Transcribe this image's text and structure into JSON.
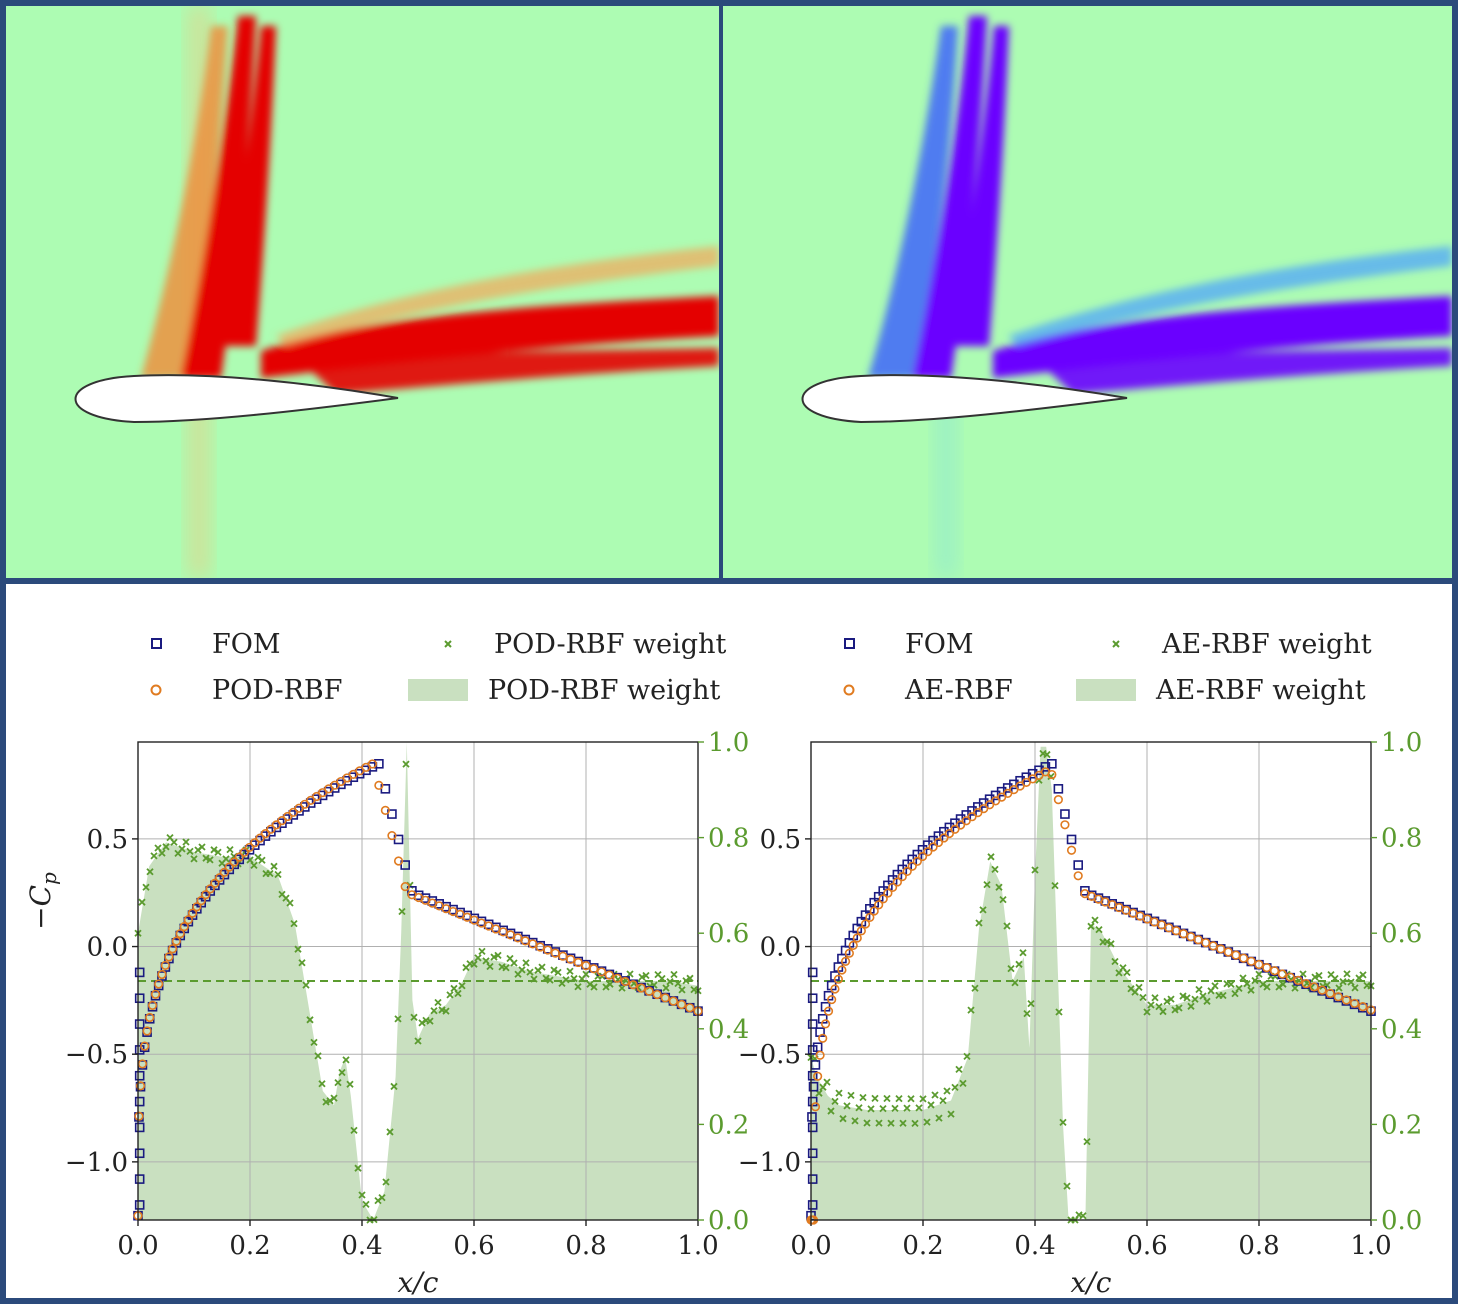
{
  "panels": {
    "top_left": {
      "field": "red"
    },
    "top_right": {
      "field": "blue"
    }
  },
  "colors": {
    "background_field": "#adfcb3",
    "shock_red": "#e40000",
    "shock_blue": "#6a00ff",
    "fom": "#1a1a80",
    "rom": "#e07b20",
    "weight": "#5b9b2f",
    "weight_fill": "#c9e0c0"
  },
  "chart_data": [
    {
      "type": "scatter",
      "xlabel": "x/c",
      "ylabel": "−C",
      "ylabel_sub": "p",
      "xlim": [
        0,
        1.0
      ],
      "ylim": [
        -1.27,
        0.95
      ],
      "y2lim": [
        0,
        1.0
      ],
      "xticks": [
        "0.0",
        "0.2",
        "0.4",
        "0.6",
        "0.8",
        "1.0"
      ],
      "yticks": [
        "0.5",
        "0.0",
        "−0.5",
        "−1.0"
      ],
      "y2ticks": [
        "1.0",
        "0.8",
        "0.6",
        "0.4",
        "0.2",
        "0.0"
      ],
      "grid": true,
      "legend": {
        "placement": "top",
        "items": [
          {
            "marker": "square",
            "label": "FOM"
          },
          {
            "marker": "cross",
            "label": "POD-RBF weight"
          },
          {
            "marker": "circle",
            "label": "POD-RBF"
          },
          {
            "marker": "patch",
            "label": "POD-RBF weight"
          }
        ]
      },
      "shock_x": 0.43,
      "fom_upper_plateau": 0.25,
      "rom_upper_offset": 0.0,
      "weight_reference": 0.5,
      "weight": {
        "x": [
          0.0,
          0.02,
          0.05,
          0.1,
          0.15,
          0.2,
          0.25,
          0.28,
          0.3,
          0.32,
          0.33,
          0.35,
          0.36,
          0.37,
          0.38,
          0.4,
          0.42,
          0.44,
          0.46,
          0.47,
          0.48,
          0.49,
          0.5,
          0.52,
          0.55,
          0.58,
          0.6,
          0.65,
          0.7,
          0.8,
          0.9,
          0.95,
          1.0
        ],
        "y": [
          0.6,
          0.74,
          0.79,
          0.77,
          0.76,
          0.76,
          0.72,
          0.62,
          0.48,
          0.34,
          0.27,
          0.24,
          0.31,
          0.34,
          0.26,
          0.04,
          0.0,
          0.06,
          0.3,
          0.6,
          1.0,
          0.46,
          0.38,
          0.43,
          0.45,
          0.5,
          0.55,
          0.54,
          0.52,
          0.5,
          0.5,
          0.5,
          0.49
        ]
      }
    },
    {
      "type": "scatter",
      "xlabel": "x/c",
      "ylabel": "",
      "xlim": [
        0,
        1.0
      ],
      "ylim": [
        -1.27,
        0.95
      ],
      "y2lim": [
        0,
        1.0
      ],
      "xticks": [
        "0.0",
        "0.2",
        "0.4",
        "0.6",
        "0.8",
        "1.0"
      ],
      "yticks": [
        "0.5",
        "0.0",
        "−0.5",
        "−1.0"
      ],
      "y2ticks": [
        "1.0",
        "0.8",
        "0.6",
        "0.4",
        "0.2",
        "0.0"
      ],
      "grid": true,
      "legend": {
        "placement": "top",
        "items": [
          {
            "marker": "square",
            "label": "FOM"
          },
          {
            "marker": "cross",
            "label": "AE-RBF weight"
          },
          {
            "marker": "circle",
            "label": "AE-RBF"
          },
          {
            "marker": "patch",
            "label": "AE-RBF weight"
          }
        ]
      },
      "shock_x": 0.43,
      "fom_upper_plateau": 0.25,
      "rom_upper_offset": -0.03,
      "weight_reference": 0.5,
      "weight": {
        "x": [
          0.0,
          0.01,
          0.03,
          0.05,
          0.1,
          0.15,
          0.2,
          0.25,
          0.28,
          0.3,
          0.32,
          0.34,
          0.36,
          0.38,
          0.39,
          0.4,
          0.41,
          0.42,
          0.43,
          0.44,
          0.45,
          0.46,
          0.47,
          0.48,
          0.49,
          0.5,
          0.52,
          0.55,
          0.6,
          0.65,
          0.7,
          0.8,
          0.9,
          0.95,
          1.0
        ],
        "y": [
          0.34,
          0.3,
          0.26,
          0.24,
          0.23,
          0.23,
          0.23,
          0.25,
          0.34,
          0.61,
          0.75,
          0.7,
          0.5,
          0.55,
          0.36,
          0.72,
          0.99,
          0.99,
          0.9,
          0.55,
          0.2,
          0.0,
          0.0,
          0.0,
          0.0,
          0.62,
          0.6,
          0.53,
          0.45,
          0.45,
          0.47,
          0.5,
          0.5,
          0.5,
          0.5
        ]
      }
    }
  ]
}
